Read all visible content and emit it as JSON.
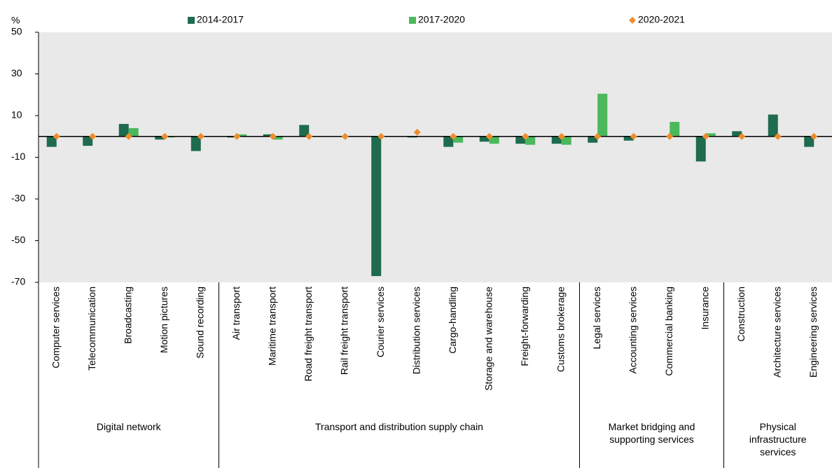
{
  "chart_data": {
    "type": "bar",
    "y_label": "%",
    "groups": [
      {
        "label": "Digital network",
        "categories": [
          "Computer services",
          "Telecommunication",
          "Broadcasting",
          "Motion pictures",
          "Sound recording"
        ]
      },
      {
        "label": "Transport and distribution supply chain",
        "categories": [
          "Air transport",
          "Maritime transport",
          "Road freight transport",
          "Rail freight transport",
          "Courier services",
          "Distribution services",
          "Cargo-handling",
          "Storage and warehouse",
          "Freight-forwarding",
          "Customs brokerage"
        ]
      },
      {
        "label": "Market bridging and supporting services",
        "categories": [
          "Legal services",
          "Accounting services",
          "Commercial banking",
          "Insurance"
        ]
      },
      {
        "label": "Physical infrastructure services",
        "categories": [
          "Construction",
          "Architecture services",
          "Engineering services"
        ]
      }
    ],
    "series": [
      {
        "name": "2014-2017",
        "color": "#1e6b4e",
        "marker": "bar",
        "values": [
          -5,
          -4.5,
          6,
          -1.5,
          -7,
          -0.5,
          1,
          5.5,
          0,
          -67,
          -0.5,
          -5,
          -2.5,
          -3.5,
          -3.5,
          -3,
          -2,
          0,
          -12,
          2.5,
          10.5,
          -5
        ]
      },
      {
        "name": "2017-2020",
        "color": "#4cb85c",
        "marker": "bar",
        "values": [
          0,
          0,
          4,
          -0.5,
          0,
          1,
          -1.5,
          0,
          0,
          0,
          0,
          -3,
          -3.5,
          -4,
          -4,
          20.5,
          0,
          7,
          1.5,
          0,
          0,
          0
        ]
      },
      {
        "name": "2020-2021",
        "color": "#f08c2b",
        "marker": "diamond",
        "values": [
          0,
          0,
          0,
          0,
          0,
          0,
          0,
          0,
          0,
          0,
          2,
          0,
          0,
          0,
          0,
          0,
          0,
          0,
          0,
          0,
          0,
          0
        ]
      }
    ],
    "ylim": [
      -70,
      50
    ],
    "yticks": [
      -70,
      -50,
      -30,
      -10,
      10,
      30,
      50
    ],
    "grid": false
  }
}
